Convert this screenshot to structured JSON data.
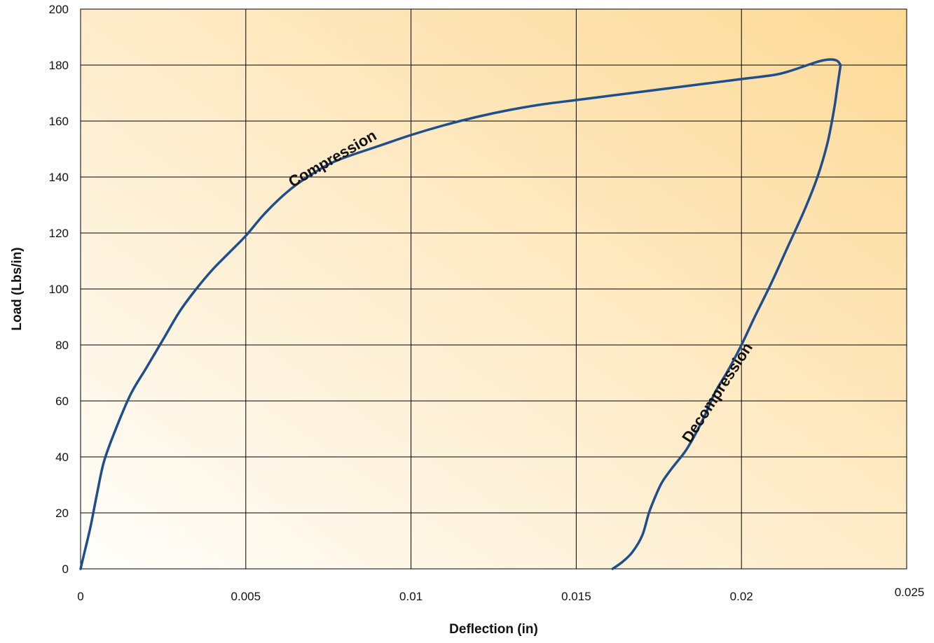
{
  "chart_data": {
    "type": "line",
    "title": "",
    "xlabel": "Deflection (in)",
    "ylabel": "Load (Lbs/in)",
    "xlim": [
      0,
      0.025
    ],
    "ylim": [
      0,
      200
    ],
    "grid": true,
    "legend": "none",
    "x_ticks": [
      {
        "value": 0,
        "label": "0"
      },
      {
        "value": 0.005,
        "label": "0.005"
      },
      {
        "value": 0.01,
        "label": "0.01"
      },
      {
        "value": 0.015,
        "label": "0.015"
      },
      {
        "value": 0.02,
        "label": "0.02"
      },
      {
        "value": 0.025,
        "label": "0.025"
      }
    ],
    "y_ticks": [
      {
        "value": 0,
        "label": "0"
      },
      {
        "value": 20,
        "label": "20"
      },
      {
        "value": 40,
        "label": "40"
      },
      {
        "value": 60,
        "label": "60"
      },
      {
        "value": 80,
        "label": "80"
      },
      {
        "value": 100,
        "label": "100"
      },
      {
        "value": 120,
        "label": "120"
      },
      {
        "value": 140,
        "label": "140"
      },
      {
        "value": 160,
        "label": "160"
      },
      {
        "value": 180,
        "label": "180"
      },
      {
        "value": 200,
        "label": "200"
      }
    ],
    "series_color": "#1f4e8c",
    "background_gradient": [
      "#fffefb",
      "#fdd996"
    ],
    "series": [
      {
        "points": [
          [
            0,
            0
          ],
          [
            0.0001,
            5
          ],
          [
            0.0003,
            15
          ],
          [
            0.0005,
            27
          ],
          [
            0.0007,
            38
          ],
          [
            0.001,
            48
          ],
          [
            0.0015,
            62
          ],
          [
            0.002,
            72
          ],
          [
            0.0025,
            82
          ],
          [
            0.003,
            92
          ],
          [
            0.0035,
            100
          ],
          [
            0.004,
            107
          ],
          [
            0.0045,
            113
          ],
          [
            0.005,
            119
          ],
          [
            0.0055,
            126
          ],
          [
            0.006,
            132
          ],
          [
            0.0065,
            137
          ],
          [
            0.007,
            141
          ],
          [
            0.0075,
            144.5
          ],
          [
            0.008,
            147
          ],
          [
            0.009,
            151
          ],
          [
            0.01,
            155
          ],
          [
            0.011,
            158.5
          ],
          [
            0.012,
            161.5
          ],
          [
            0.013,
            164
          ],
          [
            0.014,
            166
          ],
          [
            0.015,
            167.5
          ],
          [
            0.016,
            169
          ],
          [
            0.017,
            170.5
          ],
          [
            0.018,
            172
          ],
          [
            0.019,
            173.5
          ],
          [
            0.02,
            175
          ],
          [
            0.021,
            176.5
          ],
          [
            0.0215,
            178
          ],
          [
            0.022,
            180
          ],
          [
            0.0224,
            181.5
          ],
          [
            0.0227,
            182
          ],
          [
            0.0229,
            181.5
          ],
          [
            0.023,
            180
          ]
        ]
      },
      {
        "points": [
          [
            0.023,
            180
          ],
          [
            0.0229,
            172
          ],
          [
            0.0228,
            164
          ],
          [
            0.0226,
            152
          ],
          [
            0.0223,
            140
          ],
          [
            0.0219,
            128
          ],
          [
            0.0214,
            115
          ],
          [
            0.0209,
            102
          ],
          [
            0.0204,
            90
          ],
          [
            0.02,
            80
          ],
          [
            0.0196,
            71
          ],
          [
            0.0192,
            63
          ],
          [
            0.0189,
            55
          ],
          [
            0.0186,
            48
          ],
          [
            0.0183,
            42
          ],
          [
            0.0179,
            36
          ],
          [
            0.0176,
            31
          ],
          [
            0.0174,
            26
          ],
          [
            0.0172,
            20
          ],
          [
            0.017,
            12
          ],
          [
            0.0167,
            6
          ],
          [
            0.0164,
            2.5
          ],
          [
            0.0161,
            0
          ]
        ]
      }
    ],
    "annotations": [
      {
        "text": "Compression",
        "x": 0.0077,
        "y": 145,
        "angle": -30
      },
      {
        "text": "Decompression",
        "x": 0.0194,
        "y": 62,
        "angle": -57
      }
    ]
  }
}
